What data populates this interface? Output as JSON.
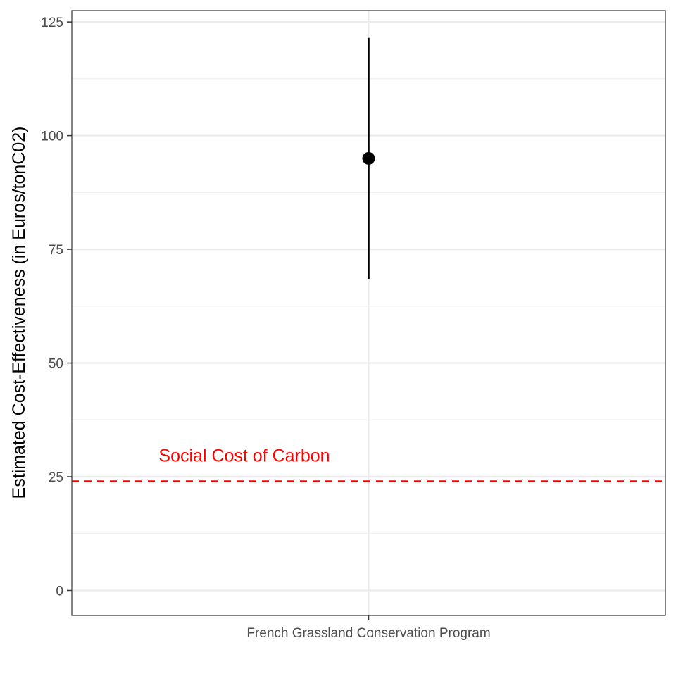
{
  "chart_data": {
    "type": "scatter",
    "title": "",
    "xlabel": "",
    "ylabel": "Estimated Cost-Effectiveness (in Euros/tonC02)",
    "categories": [
      "French Grassland Conservation Program"
    ],
    "points": [
      {
        "category": "French Grassland Conservation Program",
        "estimate": 95,
        "lower": 68.5,
        "upper": 121.5
      }
    ],
    "ylim": [
      -5.5,
      127.5
    ],
    "yticks": [
      0,
      25,
      50,
      75,
      100,
      125
    ],
    "grid": true,
    "reference_line": {
      "value": 24,
      "label": "Social Cost of Carbon",
      "color": "#ff0000",
      "style": "dashed"
    },
    "point_color": "#000000"
  }
}
